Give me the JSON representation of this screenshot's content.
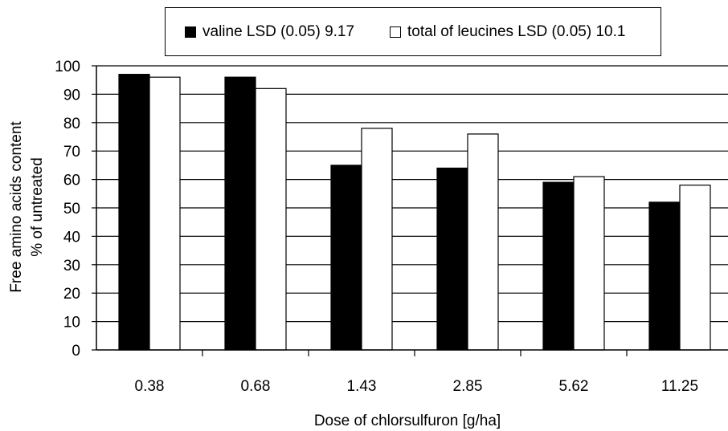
{
  "chart_data": {
    "type": "bar",
    "categories": [
      "0.38",
      "0.68",
      "1.43",
      "2.85",
      "5.62",
      "11.25"
    ],
    "series": [
      {
        "name": "valine LSD (0.05) 9.17",
        "color": "#000000",
        "values": [
          97,
          96,
          65,
          64,
          59,
          52
        ]
      },
      {
        "name": "total of leucines LSD (0.05) 10.1",
        "color": "#ffffff",
        "values": [
          96,
          92,
          78,
          76,
          61,
          58
        ]
      }
    ],
    "xlabel": "Dose of chlorsulfuron [g/ha]",
    "ylabel_lines": [
      "Free amino acids content",
      "% of untreated"
    ],
    "ylim": [
      0,
      100
    ],
    "yticks": [
      0,
      10,
      20,
      30,
      40,
      50,
      60,
      70,
      80,
      90,
      100
    ],
    "grid": true,
    "legend_position": "top"
  }
}
